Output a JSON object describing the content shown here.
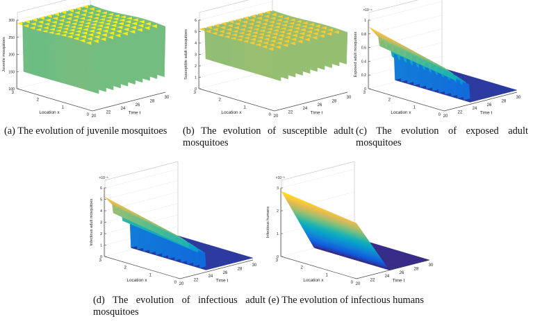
{
  "chart_data": [
    {
      "id": "a",
      "type": "surface3d",
      "ylabel": "Juvenile mosquitoes",
      "xlabel": "Time t",
      "location_label": "Location x",
      "z_ticks": [
        "100",
        "150",
        "200",
        "250",
        "300"
      ],
      "multiplier": "",
      "time_ticks": [
        "20",
        "22",
        "24",
        "26",
        "28",
        "30"
      ],
      "location_ticks": [
        "0",
        "1",
        "2",
        "3"
      ],
      "time_range": [
        20,
        30
      ],
      "location_range": [
        0,
        3
      ],
      "z_range": [
        100,
        300
      ],
      "model": "periodic",
      "baseline": 120,
      "peak": 295,
      "cycles": 10,
      "front_slope": 0
    },
    {
      "id": "b",
      "type": "surface3d",
      "ylabel": "Susceptible adult mosquitoes",
      "xlabel": "Time t",
      "location_label": "Location x",
      "z_ticks": [
        "0",
        "1",
        "2",
        "3",
        "4",
        "5",
        "6"
      ],
      "multiplier": "",
      "time_ticks": [
        "20",
        "22",
        "24",
        "26",
        "28",
        "30"
      ],
      "location_ticks": [
        "0",
        "1",
        "2",
        "3"
      ],
      "time_range": [
        20,
        30
      ],
      "location_range": [
        0,
        3
      ],
      "z_range": [
        0,
        6
      ],
      "model": "periodic",
      "baseline": 2.0,
      "peak": 5.3,
      "cycles": 10,
      "front_slope": 0
    },
    {
      "id": "c",
      "type": "surface3d",
      "ylabel": "Exposed adult mosquitoes",
      "xlabel": "Time t",
      "location_label": "Location x",
      "z_ticks": [
        "0",
        "0.2",
        "0.4",
        "0.6",
        "0.8",
        "1"
      ],
      "multiplier": "×10⁻⁴",
      "time_ticks": [
        "20",
        "22",
        "24",
        "26",
        "28",
        "30"
      ],
      "location_ticks": [
        "0",
        "1",
        "2",
        "3"
      ],
      "time_range": [
        20,
        30
      ],
      "location_range": [
        0,
        3
      ],
      "z_range": [
        0,
        1
      ],
      "model": "decay_cutoff",
      "peak": 0.9,
      "cutoff_t": 23.5,
      "cycles": 6,
      "front_slope": 0
    },
    {
      "id": "d",
      "type": "surface3d",
      "ylabel": "Infectious adult mosquitoes",
      "xlabel": "Time t",
      "location_label": "Location x",
      "z_ticks": [
        "0",
        "1",
        "2",
        "3",
        "4",
        "5",
        "6"
      ],
      "multiplier": "×10⁻⁶",
      "time_ticks": [
        "20",
        "22",
        "24",
        "26",
        "28",
        "30"
      ],
      "location_ticks": [
        "0",
        "1",
        "2",
        "3"
      ],
      "time_range": [
        20,
        30
      ],
      "location_range": [
        0,
        3
      ],
      "z_range": [
        0,
        6
      ],
      "model": "decay_cutoff",
      "peak": 5.2,
      "cutoff_t": 23.5,
      "cycles": 8,
      "front_slope": 0
    },
    {
      "id": "e",
      "type": "surface3d",
      "ylabel": "Infectious humans",
      "xlabel": "Time t",
      "location_label": "Location x",
      "z_ticks": [
        "0",
        "1",
        "2",
        "3"
      ],
      "multiplier": "×10⁻³",
      "time_ticks": [
        "20",
        "22",
        "24",
        "26",
        "28",
        "30"
      ],
      "location_ticks": [
        "0",
        "1",
        "2",
        "3"
      ],
      "time_range": [
        20,
        30
      ],
      "location_range": [
        0,
        3
      ],
      "z_range": [
        0,
        3
      ],
      "model": "smooth_decay",
      "peak": 2.85,
      "cutoff_t": 24.5,
      "cycles": 0,
      "front_slope": 0.6
    }
  ],
  "captions": {
    "a": "(a) The evolution of juvenile mosquitoes",
    "b": "(b) The evolution of susceptible adult mosquitoes",
    "c": "(c) The evolution of exposed adult mosquitoes",
    "d": "(d) The evolution of infectious adult mosquitoes",
    "e": "(e) The evolution of infectious humans"
  }
}
